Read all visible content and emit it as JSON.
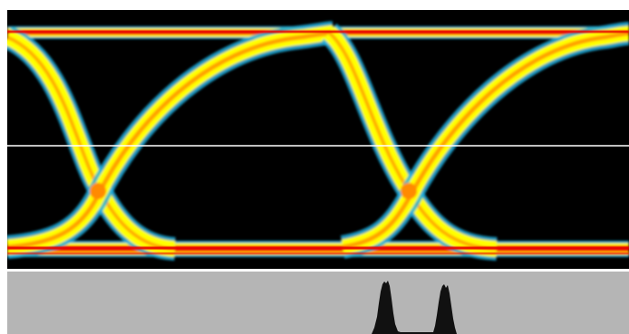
{
  "display": {
    "background_color": "#000000",
    "histogram_background": "#b5b5b5",
    "histogram_fill": "#111111",
    "reference_line_color": "#ffffff",
    "trace_colors": [
      "#20b0e0",
      "#ffff00",
      "#ff8a00",
      "#e80000"
    ]
  },
  "histogram": {
    "peaks": 2
  }
}
